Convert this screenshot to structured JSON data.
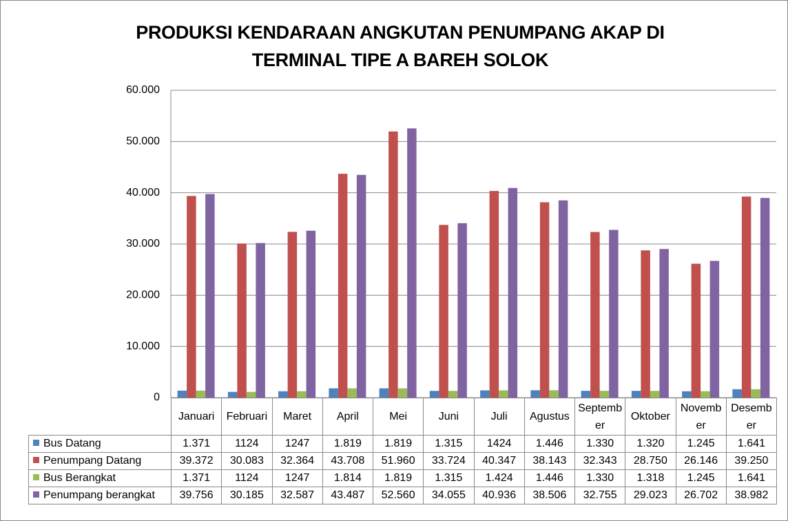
{
  "chart_data": {
    "type": "bar",
    "title": "PRODUKSI KENDARAAN ANGKUTAN PENUMPANG AKAP DI TERMINAL TIPE A BAREH SOLOK",
    "categories": [
      "Januari",
      "Februari",
      "Maret",
      "April",
      "Mei",
      "Juni",
      "Juli",
      "Agustus",
      "September",
      "Oktober",
      "November",
      "Desember"
    ],
    "series": [
      {
        "name": "Bus Datang",
        "color": "#4f81bd",
        "values": [
          1371,
          1124,
          1247,
          1819,
          1819,
          1315,
          1424,
          1446,
          1330,
          1320,
          1245,
          1641
        ],
        "value_labels": [
          "1.371",
          "1124",
          "1247",
          "1.819",
          "1.819",
          "1.315",
          "1424",
          "1.446",
          "1.330",
          "1.320",
          "1.245",
          "1.641"
        ]
      },
      {
        "name": "Penumpang Datang",
        "color": "#c0504d",
        "values": [
          39372,
          30083,
          32364,
          43708,
          51960,
          33724,
          40347,
          38143,
          32343,
          28750,
          26146,
          39250
        ],
        "value_labels": [
          "39.372",
          "30.083",
          "32.364",
          "43.708",
          "51.960",
          "33.724",
          "40.347",
          "38.143",
          "32.343",
          "28.750",
          "26.146",
          "39.250"
        ]
      },
      {
        "name": "Bus Berangkat",
        "color": "#9bbb59",
        "values": [
          1371,
          1124,
          1247,
          1814,
          1819,
          1315,
          1424,
          1446,
          1330,
          1318,
          1245,
          1641
        ],
        "value_labels": [
          "1.371",
          "1124",
          "1247",
          "1.814",
          "1.819",
          "1.315",
          "1.424",
          "1.446",
          "1.330",
          "1.318",
          "1.245",
          "1.641"
        ]
      },
      {
        "name": "Penumpang berangkat",
        "color": "#8064a2",
        "values": [
          39756,
          30185,
          32587,
          43487,
          52560,
          34055,
          40936,
          38506,
          32755,
          29023,
          26702,
          38982
        ],
        "value_labels": [
          "39.756",
          "30.185",
          "32.587",
          "43.487",
          "52.560",
          "34.055",
          "40.936",
          "38.506",
          "32.755",
          "29.023",
          "26.702",
          "38.982"
        ]
      }
    ],
    "ylim": [
      0,
      60000
    ],
    "yticks": [
      0,
      {
        "value": 10000,
        "label": "10.000"
      },
      {
        "value": 20000,
        "label": "20.000"
      },
      {
        "value": 30000,
        "label": "30.000"
      },
      {
        "value": 40000,
        "label": "40.000"
      },
      {
        "value": 50000,
        "label": "50.000"
      },
      {
        "value": 60000,
        "label": "60.000"
      }
    ],
    "grid": true
  }
}
